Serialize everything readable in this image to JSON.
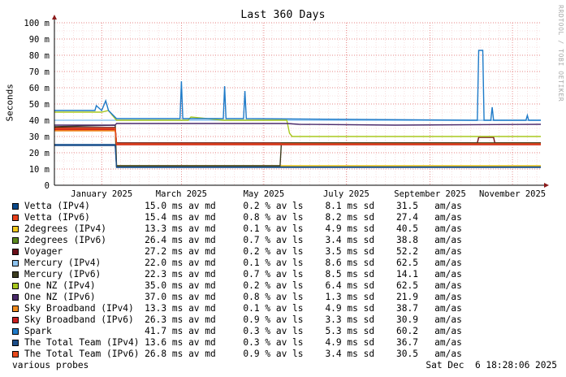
{
  "title": "Last 360 Days",
  "watermark": "RRDTOOL / TOBI OETIKER",
  "footer": {
    "left": "various probes",
    "right": "Sat Dec  6 18:28:06 2025"
  },
  "chart_data": {
    "type": "line",
    "title": "Last 360 Days",
    "ylabel": "Seconds",
    "xlabel": "",
    "ylim": [
      0,
      100
    ],
    "y_ticks": [
      {
        "value": 0,
        "label": "0"
      },
      {
        "value": 10,
        "label": "10 m"
      },
      {
        "value": 20,
        "label": "20 m"
      },
      {
        "value": 30,
        "label": "30 m"
      },
      {
        "value": 40,
        "label": "40 m"
      },
      {
        "value": 50,
        "label": "50 m"
      },
      {
        "value": 60,
        "label": "60 m"
      },
      {
        "value": 70,
        "label": "70 m"
      },
      {
        "value": 80,
        "label": "80 m"
      },
      {
        "value": 90,
        "label": "90 m"
      },
      {
        "value": 100,
        "label": "100 m"
      }
    ],
    "x_ticks": [
      {
        "value": "2025-01-15",
        "label": "January 2025"
      },
      {
        "value": "2025-03-15",
        "label": "March 2025"
      },
      {
        "value": "2025-05-15",
        "label": "May 2025"
      },
      {
        "value": "2025-07-15",
        "label": "July 2025"
      },
      {
        "value": "2025-09-15",
        "label": "September 2025"
      },
      {
        "value": "2025-11-15",
        "label": "November 2025"
      }
    ],
    "xlim": [
      "2024-12-11",
      "2025-12-06"
    ],
    "grid": true,
    "legend_placement": "bottom",
    "series": [
      {
        "name": "Vetta (IPv4)",
        "color": "#0b4a8b",
        "stats": {
          "median": "15.0 ms av md",
          "loss": "0.2 % av ls",
          "sd": "8.1 ms sd",
          "amas": "31.5   am/as"
        },
        "points": [
          [
            "2024-12-11",
            25
          ],
          [
            "2025-01-25",
            25
          ],
          [
            "2025-01-26",
            11.5
          ],
          [
            "2025-12-06",
            11.5
          ]
        ]
      },
      {
        "name": "Vetta (IPv6)",
        "color": "#e8401c",
        "stats": {
          "median": "15.4 ms av md",
          "loss": "0.8 % av ls",
          "sd": "8.2 ms sd",
          "amas": "27.4   am/as"
        },
        "points": [
          [
            "2024-12-11",
            34
          ],
          [
            "2025-01-25",
            34
          ],
          [
            "2025-01-26",
            25.5
          ],
          [
            "2025-12-06",
            25.5
          ]
        ]
      },
      {
        "name": "2degrees (IPv4)",
        "color": "#f0c81e",
        "stats": {
          "median": "13.3 ms av md",
          "loss": "0.1 % av ls",
          "sd": "4.9 ms sd",
          "amas": "40.5   am/as"
        },
        "points": [
          [
            "2024-12-11",
            35
          ],
          [
            "2025-01-25",
            35
          ],
          [
            "2025-01-26",
            12
          ],
          [
            "2025-12-06",
            12
          ]
        ]
      },
      {
        "name": "2degrees (IPv6)",
        "color": "#5a8a1e",
        "stats": {
          "median": "26.4 ms av md",
          "loss": "0.7 % av ls",
          "sd": "3.4 ms sd",
          "amas": "38.8   am/as"
        },
        "points": [
          [
            "2024-12-11",
            35
          ],
          [
            "2025-01-25",
            35
          ],
          [
            "2025-01-26",
            26
          ],
          [
            "2025-12-06",
            26
          ]
        ]
      },
      {
        "name": "Voyager",
        "color": "#6b0f1a",
        "stats": {
          "median": "27.2 ms av md",
          "loss": "0.2 % av ls",
          "sd": "3.5 ms sd",
          "amas": "52.2   am/as"
        },
        "points": [
          [
            "2024-12-11",
            35.5
          ],
          [
            "2025-01-25",
            35.5
          ],
          [
            "2025-01-26",
            26
          ],
          [
            "2025-10-20",
            26
          ],
          [
            "2025-10-21",
            29.5
          ],
          [
            "2025-11-01",
            29.5
          ],
          [
            "2025-11-02",
            26
          ],
          [
            "2025-12-06",
            26
          ]
        ]
      },
      {
        "name": "Mercury (IPv4)",
        "color": "#8ec4f0",
        "stats": {
          "median": "22.0 ms av md",
          "loss": "0.1 % av ls",
          "sd": "8.6 ms sd",
          "amas": "62.5   am/as"
        },
        "points": [
          [
            "2024-12-11",
            40
          ],
          [
            "2025-12-06",
            40
          ]
        ]
      },
      {
        "name": "Mercury (IPv6)",
        "color": "#3c3c1e",
        "stats": {
          "median": "22.3 ms av md",
          "loss": "0.7 % av ls",
          "sd": "8.5 ms sd",
          "amas": "14.1   am/as"
        },
        "points": [
          [
            "2024-12-11",
            36
          ],
          [
            "2025-01-25",
            37
          ],
          [
            "2025-01-26",
            12
          ],
          [
            "2025-05-27",
            12
          ],
          [
            "2025-05-28",
            26
          ],
          [
            "2025-12-06",
            26
          ]
        ]
      },
      {
        "name": "One NZ (IPv4)",
        "color": "#a8c81e",
        "stats": {
          "median": "35.0 ms av md",
          "loss": "0.2 % av ls",
          "sd": "6.4 ms sd",
          "amas": "62.5   am/as"
        },
        "points": [
          [
            "2024-12-11",
            45
          ],
          [
            "2025-01-15",
            45
          ],
          [
            "2025-01-20",
            46
          ],
          [
            "2025-01-26",
            40
          ],
          [
            "2025-03-20",
            40
          ],
          [
            "2025-03-22",
            42
          ],
          [
            "2025-04-15",
            40
          ],
          [
            "2025-06-01",
            40
          ],
          [
            "2025-06-03",
            32
          ],
          [
            "2025-06-05",
            30
          ],
          [
            "2025-12-06",
            30
          ]
        ]
      },
      {
        "name": "One NZ (IPv6)",
        "color": "#4a2a6b",
        "stats": {
          "median": "37.0 ms av md",
          "loss": "0.8 % av ls",
          "sd": "1.3 ms sd",
          "amas": "21.9   am/as"
        },
        "points": [
          [
            "2024-12-11",
            37
          ],
          [
            "2025-01-25",
            37
          ],
          [
            "2025-01-26",
            38
          ],
          [
            "2025-06-01",
            38
          ],
          [
            "2025-06-10",
            37.5
          ],
          [
            "2025-08-20",
            37
          ],
          [
            "2025-12-06",
            37.5
          ]
        ]
      },
      {
        "name": "Sky Broadband (IPv4)",
        "color": "#f08c1e",
        "stats": {
          "median": "13.3 ms av md",
          "loss": "0.1 % av ls",
          "sd": "4.9 ms sd",
          "amas": "38.7   am/as"
        },
        "points": [
          [
            "2024-12-11",
            33.5
          ],
          [
            "2025-01-25",
            33.5
          ],
          [
            "2025-01-26",
            25
          ],
          [
            "2025-12-06",
            25
          ]
        ]
      },
      {
        "name": "Sky Broadband (IPv6)",
        "color": "#c81e1e",
        "stats": {
          "median": "26.3 ms av md",
          "loss": "0.9 % av ls",
          "sd": "3.3 ms sd",
          "amas": "30.9   am/as"
        },
        "points": [
          [
            "2024-12-11",
            34.5
          ],
          [
            "2025-01-25",
            34.5
          ],
          [
            "2025-01-26",
            25
          ],
          [
            "2025-12-06",
            25
          ]
        ]
      },
      {
        "name": "Spark",
        "color": "#1e7ac8",
        "stats": {
          "median": "41.7 ms av md",
          "loss": "0.3 % av ls",
          "sd": "5.3 ms sd",
          "amas": "60.2   am/as"
        },
        "points": [
          [
            "2024-12-11",
            46
          ],
          [
            "2025-01-10",
            46
          ],
          [
            "2025-01-11",
            49
          ],
          [
            "2025-01-15",
            46
          ],
          [
            "2025-01-18",
            52
          ],
          [
            "2025-01-20",
            46
          ],
          [
            "2025-01-26",
            41
          ],
          [
            "2025-03-14",
            41
          ],
          [
            "2025-03-15",
            64
          ],
          [
            "2025-03-16",
            41
          ],
          [
            "2025-04-15",
            41
          ],
          [
            "2025-04-16",
            61
          ],
          [
            "2025-04-17",
            41
          ],
          [
            "2025-04-30",
            41
          ],
          [
            "2025-05-01",
            58
          ],
          [
            "2025-05-02",
            41
          ],
          [
            "2025-10-15",
            40
          ],
          [
            "2025-10-20",
            40
          ],
          [
            "2025-10-21",
            83
          ],
          [
            "2025-10-24",
            83
          ],
          [
            "2025-10-25",
            40
          ],
          [
            "2025-10-30",
            40
          ],
          [
            "2025-10-31",
            48
          ],
          [
            "2025-11-01",
            40
          ],
          [
            "2025-11-25",
            40
          ],
          [
            "2025-11-26",
            43
          ],
          [
            "2025-11-27",
            40
          ],
          [
            "2025-12-06",
            40
          ]
        ]
      },
      {
        "name": "The Total Team (IPv4)",
        "color": "#1c4e8a",
        "stats": {
          "median": "13.6 ms av md",
          "loss": "0.3 % av ls",
          "sd": "4.9 ms sd",
          "amas": "36.7   am/as"
        },
        "points": [
          [
            "2024-12-11",
            24.5
          ],
          [
            "2025-01-25",
            24.5
          ],
          [
            "2025-01-26",
            11
          ],
          [
            "2025-12-06",
            11
          ]
        ]
      },
      {
        "name": "The Total Team (IPv6)",
        "color": "#e84a1c",
        "stats": {
          "median": "26.8 ms av md",
          "loss": "0.9 % av ls",
          "sd": "3.4 ms sd",
          "amas": "30.5   am/as"
        },
        "points": [
          [
            "2024-12-11",
            35
          ],
          [
            "2025-01-25",
            35
          ],
          [
            "2025-01-26",
            25.5
          ],
          [
            "2025-12-06",
            25.5
          ]
        ]
      }
    ]
  }
}
